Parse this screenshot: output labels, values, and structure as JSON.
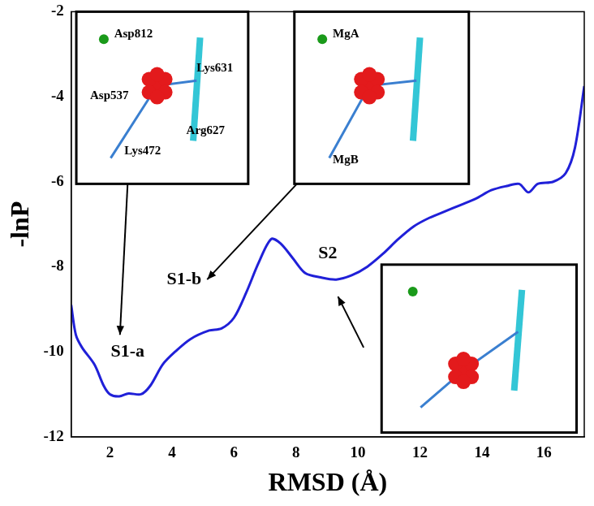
{
  "chart_data": {
    "type": "line",
    "x_label": "RMSD (Å)",
    "y_label": "-lnP",
    "x": [
      0.75,
      0.9,
      1.1,
      1.5,
      1.8,
      2.0,
      2.3,
      2.6,
      3.0,
      3.3,
      3.7,
      4.1,
      4.6,
      5.2,
      5.6,
      6.0,
      6.4,
      6.8,
      7.2,
      7.5,
      7.9,
      8.3,
      8.8,
      9.3,
      9.8,
      10.3,
      10.8,
      11.3,
      11.8,
      12.3,
      12.8,
      13.3,
      13.8,
      14.3,
      14.8,
      15.2,
      15.5,
      15.8,
      16.3,
      16.7,
      17.0,
      17.3
    ],
    "values": [
      -8.9,
      -9.6,
      -9.9,
      -10.3,
      -10.8,
      -11.0,
      -11.05,
      -10.98,
      -11.0,
      -10.8,
      -10.3,
      -10.0,
      -9.7,
      -9.5,
      -9.45,
      -9.2,
      -8.6,
      -7.9,
      -7.35,
      -7.45,
      -7.8,
      -8.15,
      -8.25,
      -8.3,
      -8.2,
      -8.0,
      -7.7,
      -7.35,
      -7.05,
      -6.85,
      -6.7,
      -6.55,
      -6.4,
      -6.2,
      -6.1,
      -6.05,
      -6.25,
      -6.05,
      -6.0,
      -5.8,
      -5.2,
      -3.75
    ],
    "color": "#2020d8",
    "xlim": [
      0.75,
      17.3
    ],
    "ylim": [
      -12,
      -2
    ],
    "xticks": [
      2,
      4,
      6,
      8,
      10,
      12,
      14,
      16
    ],
    "yticks": [
      -12,
      -10,
      -8,
      -6,
      -4,
      -2
    ],
    "grid": false,
    "annotations": [
      "S1-a",
      "S1-b",
      "S2"
    ],
    "inset_labels": [
      [
        "Asp812",
        "Lys631",
        "Asp537",
        "Arg627",
        "Lys472"
      ],
      [
        "MgA",
        "MgB"
      ]
    ]
  }
}
